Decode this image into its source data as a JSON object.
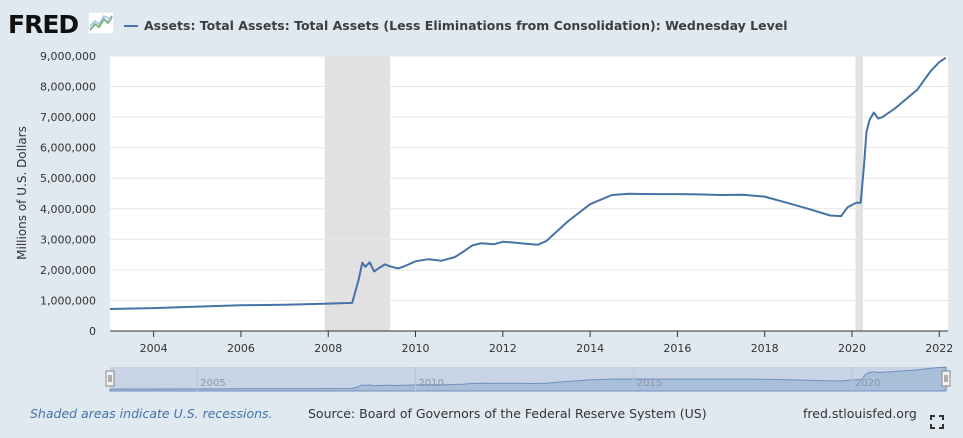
{
  "header": {
    "logo_text": "FRED",
    "logo_icon": "fred-chart-icon",
    "series_title": "Assets: Total Assets: Total Assets (Less Eliminations from Consolidation): Wednesday Level"
  },
  "chart_data": {
    "type": "line",
    "ylabel": "Millions of U.S. Dollars",
    "xlim": [
      2003.0,
      2022.2
    ],
    "ylim": [
      0,
      9000000
    ],
    "x_ticks": [
      "2004",
      "2006",
      "2008",
      "2010",
      "2012",
      "2014",
      "2016",
      "2018",
      "2020",
      "2022"
    ],
    "y_ticks": [
      "0",
      "1,000,000",
      "2,000,000",
      "3,000,000",
      "4,000,000",
      "5,000,000",
      "6,000,000",
      "7,000,000",
      "8,000,000",
      "9,000,000"
    ],
    "grid": true,
    "line_color": "#4572a7",
    "recessions": [
      [
        2007.92,
        2009.42
      ],
      [
        2020.08,
        2020.25
      ]
    ],
    "series": [
      {
        "x": [
          2003.0,
          2004.0,
          2005.0,
          2006.0,
          2007.0,
          2007.9,
          2008.55,
          2008.7,
          2008.78,
          2008.85,
          2008.95,
          2009.05,
          2009.15,
          2009.3,
          2009.45,
          2009.6,
          2009.75,
          2010.0,
          2010.3,
          2010.6,
          2010.9,
          2011.1,
          2011.3,
          2011.5,
          2011.8,
          2012.0,
          2012.2,
          2012.5,
          2012.8,
          2013.0,
          2013.5,
          2014.0,
          2014.5,
          2014.9,
          2015.5,
          2016.0,
          2016.5,
          2017.0,
          2017.5,
          2018.0,
          2018.5,
          2019.0,
          2019.5,
          2019.75,
          2019.9,
          2020.1,
          2020.2,
          2020.28,
          2020.33,
          2020.4,
          2020.5,
          2020.6,
          2020.7,
          2021.0,
          2021.5,
          2021.8,
          2022.0,
          2022.15
        ],
        "y": [
          720000,
          750000,
          800000,
          840000,
          860000,
          890000,
          920000,
          1700000,
          2240000,
          2100000,
          2250000,
          1950000,
          2050000,
          2180000,
          2100000,
          2050000,
          2120000,
          2280000,
          2350000,
          2300000,
          2420000,
          2600000,
          2800000,
          2870000,
          2840000,
          2920000,
          2900000,
          2860000,
          2820000,
          2950000,
          3600000,
          4150000,
          4450000,
          4490000,
          4480000,
          4480000,
          4470000,
          4450000,
          4460000,
          4400000,
          4200000,
          4000000,
          3780000,
          3760000,
          4050000,
          4200000,
          4200000,
          5500000,
          6500000,
          6900000,
          7150000,
          6950000,
          7000000,
          7300000,
          7900000,
          8500000,
          8800000,
          8940000
        ]
      }
    ]
  },
  "navigator": {
    "tick_labels": [
      "2005",
      "2010",
      "2015",
      "2020"
    ]
  },
  "footer": {
    "recession_note": "Shaded areas indicate U.S. recessions.",
    "source": "Source: Board of Governors of the Federal Reserve System (US)",
    "link": "fred.stlouisfed.org",
    "fullscreen_icon": "fullscreen-icon"
  }
}
